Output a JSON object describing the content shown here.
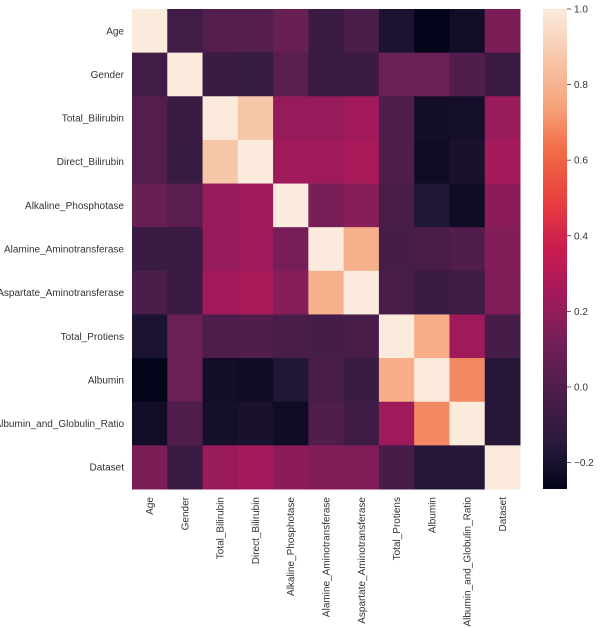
{
  "chart_data": {
    "type": "heatmap",
    "title": "",
    "xlabel": "",
    "ylabel": "",
    "labels": [
      "Age",
      "Gender",
      "Total_Bilirubin",
      "Direct_Bilirubin",
      "Alkaline_Phosphotase",
      "Alamine_Aminotransferase",
      "Aspartate_Aminotransferase",
      "Total_Protiens",
      "Albumin",
      "Albumin_and_Globulin_Ratio",
      "Dataset"
    ],
    "matrix": [
      [
        1.0,
        -0.06,
        0.01,
        0.01,
        0.08,
        -0.09,
        -0.02,
        -0.19,
        -0.27,
        -0.22,
        0.14
      ],
      [
        -0.06,
        1.0,
        -0.09,
        -0.1,
        0.03,
        -0.08,
        -0.08,
        0.09,
        0.09,
        0.0,
        -0.08
      ],
      [
        0.01,
        -0.09,
        1.0,
        0.87,
        0.21,
        0.21,
        0.24,
        -0.01,
        -0.22,
        -0.21,
        0.22
      ],
      [
        0.01,
        -0.1,
        0.87,
        1.0,
        0.23,
        0.23,
        0.26,
        -0.0,
        -0.23,
        -0.2,
        0.25
      ],
      [
        0.08,
        0.03,
        0.21,
        0.23,
        1.0,
        0.13,
        0.17,
        -0.03,
        -0.17,
        -0.23,
        0.18
      ],
      [
        -0.09,
        -0.08,
        0.21,
        0.23,
        0.13,
        1.0,
        0.79,
        -0.04,
        -0.03,
        -0.0,
        0.16
      ],
      [
        -0.02,
        -0.08,
        0.24,
        0.26,
        0.17,
        0.79,
        1.0,
        -0.03,
        -0.09,
        -0.07,
        0.15
      ],
      [
        -0.19,
        0.09,
        -0.01,
        -0.0,
        -0.03,
        -0.04,
        -0.03,
        1.0,
        0.78,
        0.23,
        -0.04
      ],
      [
        -0.27,
        0.09,
        -0.22,
        -0.23,
        -0.17,
        -0.03,
        -0.09,
        0.78,
        1.0,
        0.69,
        -0.16
      ],
      [
        -0.22,
        0.0,
        -0.21,
        -0.2,
        -0.23,
        -0.0,
        -0.07,
        0.23,
        0.69,
        1.0,
        -0.16
      ],
      [
        0.14,
        -0.08,
        0.22,
        0.25,
        0.18,
        0.16,
        0.15,
        -0.04,
        -0.16,
        -0.16,
        1.0
      ]
    ],
    "colorbar": {
      "vmin": -0.27,
      "vmax": 1.0,
      "ticks": [
        -0.2,
        0.0,
        0.2,
        0.4,
        0.6,
        0.8,
        1.0
      ],
      "tick_labels": [
        "−0.2",
        "0.0",
        "0.2",
        "0.4",
        "0.6",
        "0.8",
        "1.0"
      ]
    },
    "colormap": "rocket",
    "colormap_stops": [
      "#03051a",
      "#2b1a3e",
      "#4c1d4b",
      "#701f57",
      "#a11a5b",
      "#cb1b4f",
      "#e83f3f",
      "#f26a44",
      "#f6a47c",
      "#f7c7aa",
      "#faebdd"
    ],
    "legend_position": "right",
    "grid": false
  }
}
